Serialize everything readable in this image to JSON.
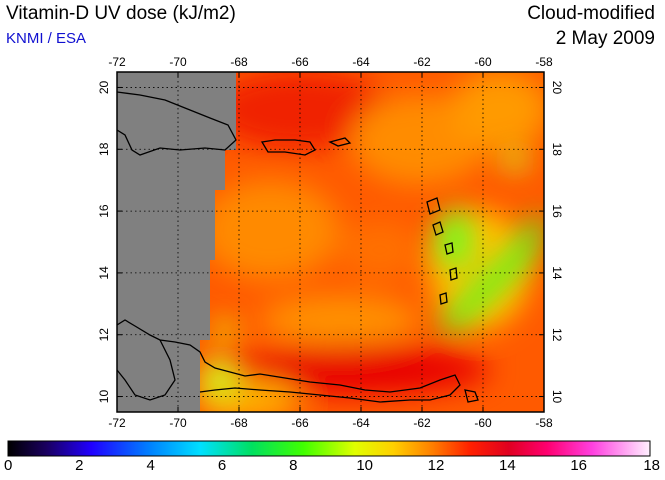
{
  "header": {
    "title": "Vitamin-D UV dose (kJ/m2)",
    "source": "KNMI / ESA",
    "mode": "Cloud-modified",
    "date": "2 May 2009"
  },
  "map": {
    "lon_range": [
      -72,
      -58
    ],
    "lat_range": [
      9.5,
      20.5
    ],
    "lon_ticks": [
      "-72",
      "-70",
      "-68",
      "-66",
      "-64",
      "-62",
      "-60",
      "-58"
    ],
    "lat_ticks": [
      "10",
      "12",
      "14",
      "16",
      "18",
      "20"
    ],
    "no_data_color": "#808080",
    "coastline_color": "#000000",
    "grid": "dotted"
  },
  "colorbar": {
    "min": 0,
    "max": 18,
    "labels": [
      "0",
      "2",
      "4",
      "6",
      "8",
      "10",
      "12",
      "14",
      "16",
      "18"
    ]
  }
}
